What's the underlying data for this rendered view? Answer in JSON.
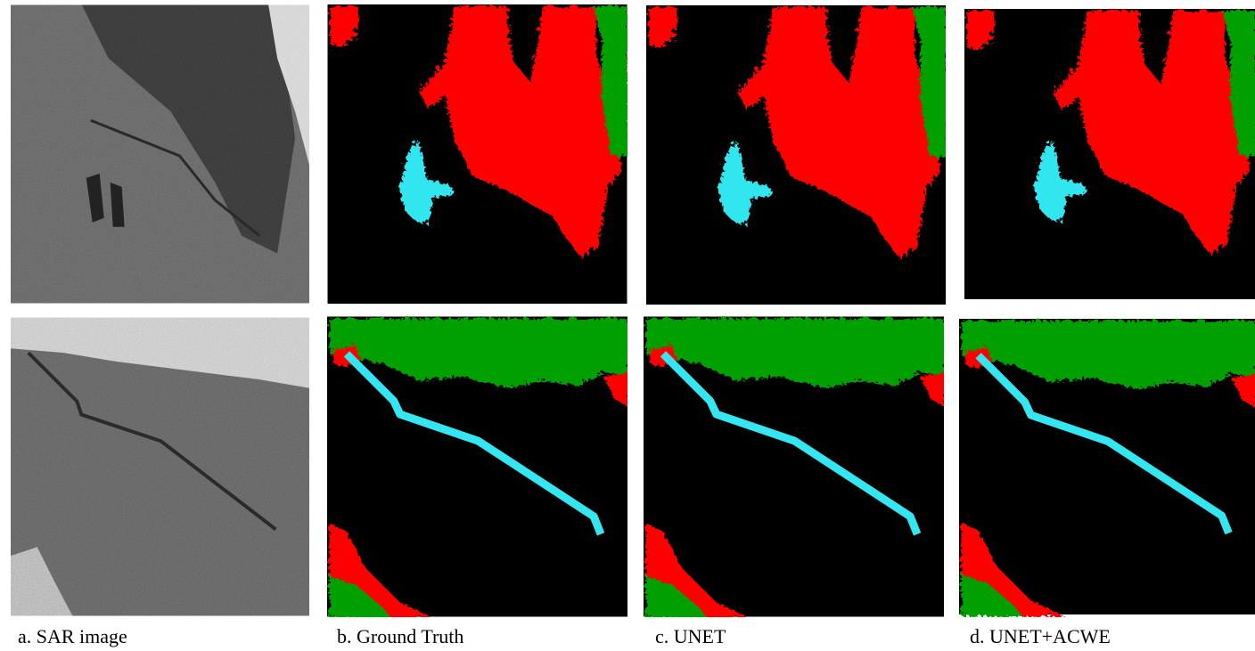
{
  "captions": [
    "a. SAR image",
    "b. Ground Truth",
    "c. UNET",
    "d. UNET+ACWE"
  ]
}
